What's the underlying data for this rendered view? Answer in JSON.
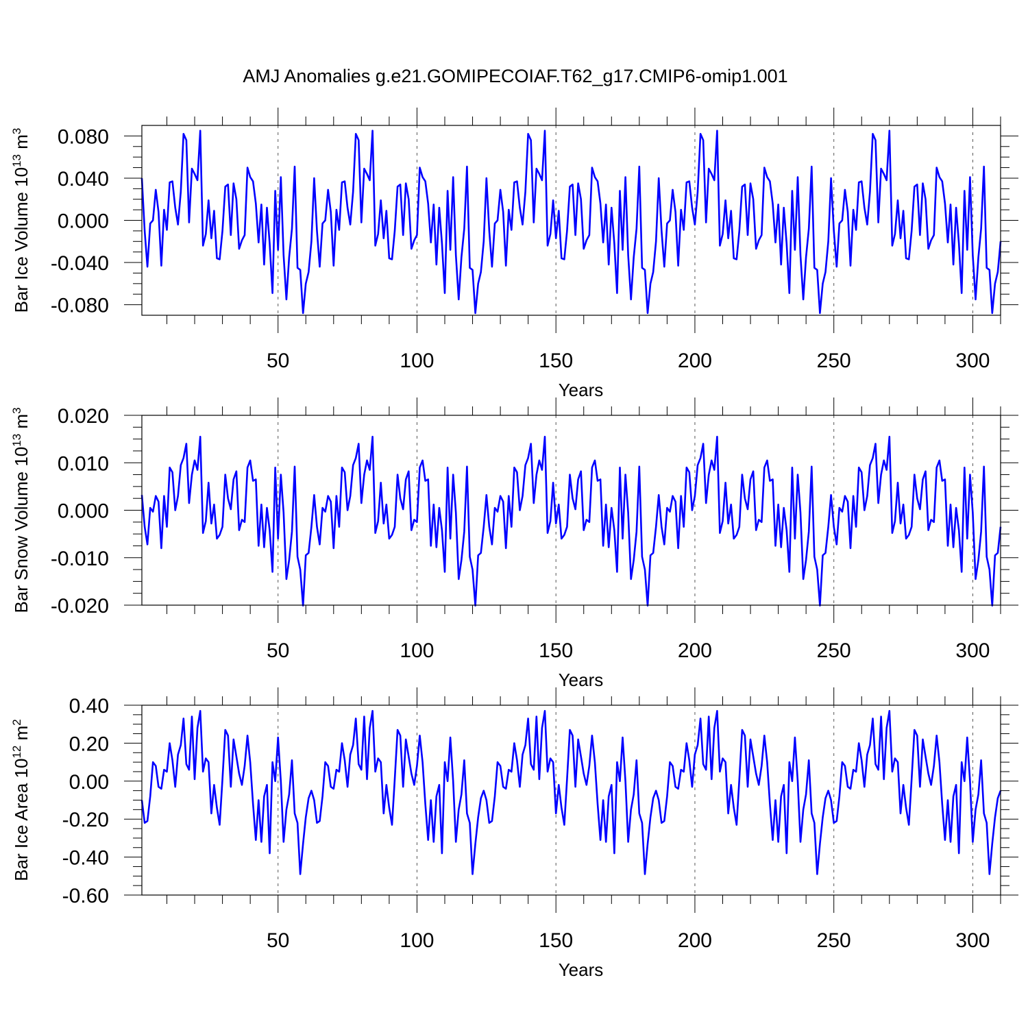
{
  "page": {
    "title": "AMJ Anomalies g.e21.GOMIPECOIAF.T62_g17.CMIP6-omip1.001"
  },
  "colors": {
    "series": "#0000ff",
    "frame": "#000000",
    "reference_lines": "#555555"
  },
  "chart_data": [
    {
      "type": "line",
      "name": "ice-volume",
      "ylabel_prefix": "Bar Ice Volume 10",
      "ylabel_exp": "13",
      "ylabel_unit": " m",
      "ylabel_unit_exp": "3",
      "xlabel": "Years",
      "xlim": [
        1,
        310
      ],
      "ylim": [
        -0.09,
        0.09
      ],
      "xticks": [
        50,
        100,
        150,
        200,
        250,
        300
      ],
      "xtick_labels": [
        "50",
        "100",
        "150",
        "200",
        "250",
        "300"
      ],
      "yticks": [
        0.08,
        0.04,
        0.0,
        -0.04,
        -0.08
      ],
      "ytick_labels": [
        "0.080",
        "0.040",
        "0.000",
        "-0.040",
        "-0.080"
      ],
      "reference_lines_x": [
        50,
        100,
        150,
        200,
        250,
        300
      ],
      "cycle_length": 62,
      "x_start": 1,
      "x_end": 310,
      "cycle_values": [
        0.04,
        -0.01,
        -0.044,
        -0.003,
        0.0,
        0.029,
        0.008,
        -0.043,
        0.01,
        -0.009,
        0.036,
        0.037,
        0.012,
        -0.004,
        0.027,
        0.082,
        0.076,
        -0.002,
        0.049,
        0.044,
        0.038,
        0.085,
        -0.024,
        -0.013,
        0.019,
        -0.017,
        0.009,
        -0.036,
        -0.037,
        -0.01,
        0.032,
        0.034,
        -0.014,
        0.035,
        0.02,
        -0.027,
        -0.019,
        -0.014,
        0.05,
        0.041,
        0.037,
        0.016,
        -0.021,
        0.015,
        -0.042,
        0.012,
        -0.022,
        -0.069,
        0.028,
        -0.028,
        0.041,
        -0.033,
        -0.075,
        -0.035,
        -0.008,
        0.051,
        -0.045,
        -0.047,
        -0.088,
        -0.06,
        -0.049,
        -0.02
      ]
    },
    {
      "type": "line",
      "name": "snow-volume",
      "ylabel_prefix": "Bar Snow Volume 10",
      "ylabel_exp": "13",
      "ylabel_unit": " m",
      "ylabel_unit_exp": "3",
      "xlabel": "Years",
      "xlim": [
        1,
        310
      ],
      "ylim": [
        -0.02,
        0.02
      ],
      "xticks": [
        50,
        100,
        150,
        200,
        250,
        300
      ],
      "xtick_labels": [
        "50",
        "100",
        "150",
        "200",
        "250",
        "300"
      ],
      "yticks": [
        0.02,
        0.01,
        0.0,
        -0.01,
        -0.02
      ],
      "ytick_labels": [
        "0.020",
        "0.010",
        "0.000",
        "-0.010",
        "-0.020"
      ],
      "reference_lines_x": [
        50,
        100,
        150,
        200,
        250,
        300
      ],
      "cycle_length": 62,
      "x_start": 1,
      "x_end": 310,
      "cycle_values": [
        0.0032,
        -0.0035,
        -0.0072,
        0.0005,
        -0.0003,
        0.003,
        0.0018,
        -0.008,
        0.003,
        -0.0035,
        0.009,
        0.008,
        0.0,
        0.003,
        0.0095,
        0.011,
        0.014,
        0.0015,
        0.0075,
        0.0105,
        0.0085,
        0.0155,
        -0.0048,
        -0.0023,
        0.0058,
        -0.0028,
        0.0012,
        -0.006,
        -0.0052,
        -0.0035,
        0.0075,
        0.0025,
        0.0002,
        0.0065,
        0.0082,
        -0.0042,
        -0.002,
        -0.0025,
        0.009,
        0.0105,
        0.0062,
        0.0065,
        -0.0075,
        0.0012,
        -0.0078,
        0.0005,
        -0.0042,
        -0.013,
        0.009,
        -0.006,
        0.0075,
        -0.0005,
        -0.0145,
        -0.0105,
        -0.0045,
        0.0092,
        -0.0098,
        -0.0125,
        -0.0201,
        -0.0095,
        -0.009,
        -0.0035
      ]
    },
    {
      "type": "line",
      "name": "ice-area",
      "ylabel_prefix": "Bar Ice Area 10",
      "ylabel_exp": "12",
      "ylabel_unit": " m",
      "ylabel_unit_exp": "2",
      "xlabel": "Years",
      "xlim": [
        1,
        310
      ],
      "ylim": [
        -0.6,
        0.4
      ],
      "xticks": [
        50,
        100,
        150,
        200,
        250,
        300
      ],
      "xtick_labels": [
        "50",
        "100",
        "150",
        "200",
        "250",
        "300"
      ],
      "yticks": [
        0.4,
        0.2,
        0.0,
        -0.2,
        -0.4,
        -0.6
      ],
      "ytick_labels": [
        "0.40",
        "0.20",
        "0.00",
        "-0.20",
        "-0.40",
        "-0.60"
      ],
      "reference_lines_x": [
        50,
        100,
        150,
        200,
        250,
        300
      ],
      "cycle_length": 62,
      "x_start": 1,
      "x_end": 310,
      "cycle_values": [
        -0.1,
        -0.22,
        -0.21,
        -0.08,
        0.1,
        0.08,
        -0.03,
        -0.04,
        0.06,
        0.05,
        0.2,
        0.11,
        -0.03,
        0.14,
        0.19,
        0.33,
        0.09,
        0.06,
        0.34,
        0.01,
        0.28,
        0.37,
        0.05,
        0.12,
        0.1,
        -0.17,
        -0.02,
        -0.14,
        -0.23,
        0.01,
        0.27,
        0.24,
        -0.03,
        0.22,
        0.13,
        0.04,
        -0.02,
        0.08,
        0.24,
        0.1,
        -0.12,
        -0.31,
        -0.1,
        -0.32,
        -0.08,
        -0.02,
        -0.38,
        0.1,
        0.0,
        0.23,
        0.0,
        -0.32,
        -0.15,
        -0.07,
        0.11,
        -0.17,
        -0.22,
        -0.49,
        -0.33,
        -0.19,
        -0.09,
        -0.05
      ]
    }
  ]
}
